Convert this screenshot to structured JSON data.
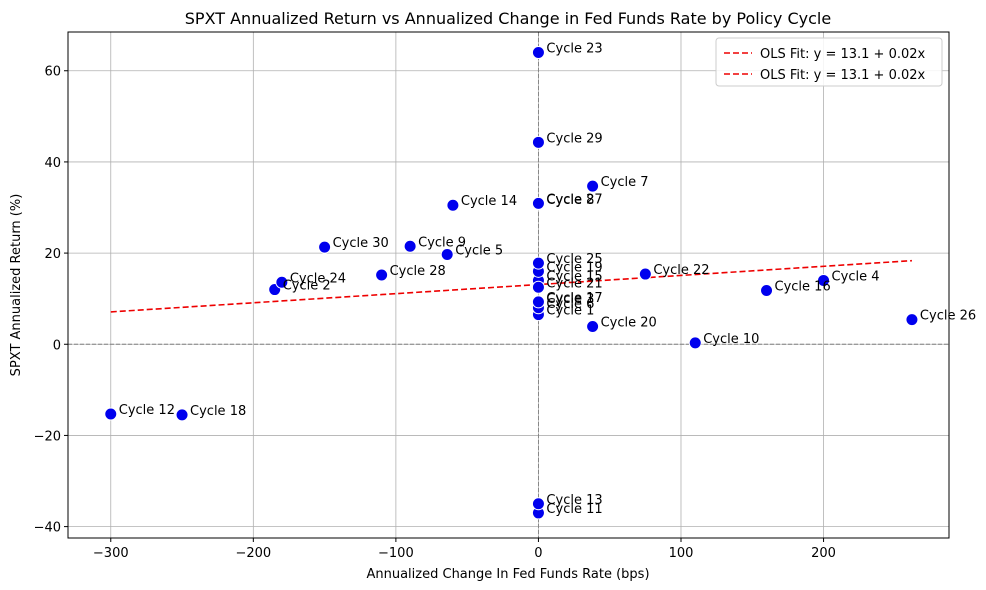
{
  "chart_data": {
    "type": "scatter",
    "title": "SPXT Annualized Return vs Annualized Change in Fed Funds Rate by Policy Cycle",
    "xlabel": "Annualized Change In Fed Funds Rate (bps)",
    "ylabel": "SPXT Annualized Return (%)",
    "xlim": [
      -330,
      288
    ],
    "ylim": [
      -42.5,
      68.5
    ],
    "xticks": [
      -300,
      -200,
      -100,
      0,
      100,
      200
    ],
    "yticks": [
      -40,
      -20,
      0,
      20,
      40,
      60
    ],
    "xtick_labels": [
      "−300",
      "−200",
      "−100",
      "0",
      "100",
      "200"
    ],
    "ytick_labels": [
      "−40",
      "−20",
      "0",
      "20",
      "40",
      "60"
    ],
    "grid": true,
    "legend_position": "top-right",
    "legend": [
      "OLS Fit: y = 13.1 + 0.02x",
      "OLS Fit: y = 13.1 + 0.02x"
    ],
    "point_color": "#0000ee",
    "fit_color": "#ee0000",
    "fit": {
      "intercept": 13.1,
      "slope": 0.02,
      "x_range": [
        -300,
        262
      ]
    },
    "reference_lines": {
      "x": 0,
      "y": 0
    },
    "points": [
      {
        "label": "Cycle 1",
        "x": 0,
        "y": 6.5
      },
      {
        "label": "Cycle 2",
        "x": -185,
        "y": 12
      },
      {
        "label": "Cycle 3",
        "x": 0,
        "y": 9
      },
      {
        "label": "Cycle 4",
        "x": 200,
        "y": 14
      },
      {
        "label": "Cycle 5",
        "x": -64,
        "y": 19.7
      },
      {
        "label": "Cycle 6",
        "x": 0,
        "y": 8
      },
      {
        "label": "Cycle 7",
        "x": 38,
        "y": 34.7
      },
      {
        "label": "Cycle 8",
        "x": 0,
        "y": 30.8
      },
      {
        "label": "Cycle 9",
        "x": -90,
        "y": 21.5
      },
      {
        "label": "Cycle 10",
        "x": 110,
        "y": 0.3
      },
      {
        "label": "Cycle 11",
        "x": 0,
        "y": -37
      },
      {
        "label": "Cycle 12",
        "x": -300,
        "y": -15.3
      },
      {
        "label": "Cycle 13",
        "x": 0,
        "y": -35
      },
      {
        "label": "Cycle 14",
        "x": -60,
        "y": 30.5
      },
      {
        "label": "Cycle 15",
        "x": 0,
        "y": 14
      },
      {
        "label": "Cycle 16",
        "x": 160,
        "y": 11.8
      },
      {
        "label": "Cycle 17",
        "x": 0,
        "y": 9.3
      },
      {
        "label": "Cycle 18",
        "x": -250,
        "y": -15.5
      },
      {
        "label": "Cycle 19",
        "x": 0,
        "y": 16
      },
      {
        "label": "Cycle 20",
        "x": 38,
        "y": 3.9
      },
      {
        "label": "Cycle 21",
        "x": 0,
        "y": 12.5
      },
      {
        "label": "Cycle 22",
        "x": 75,
        "y": 15.4
      },
      {
        "label": "Cycle 23",
        "x": 0,
        "y": 64
      },
      {
        "label": "Cycle 24",
        "x": -180,
        "y": 13.6
      },
      {
        "label": "Cycle 25",
        "x": 0,
        "y": 17.8
      },
      {
        "label": "Cycle 26",
        "x": 262,
        "y": 5.4
      },
      {
        "label": "Cycle 27",
        "x": 0,
        "y": 30.9
      },
      {
        "label": "Cycle 28",
        "x": -110,
        "y": 15.2
      },
      {
        "label": "Cycle 29",
        "x": 0,
        "y": 44.3
      },
      {
        "label": "Cycle 30",
        "x": -150,
        "y": 21.3
      }
    ]
  }
}
